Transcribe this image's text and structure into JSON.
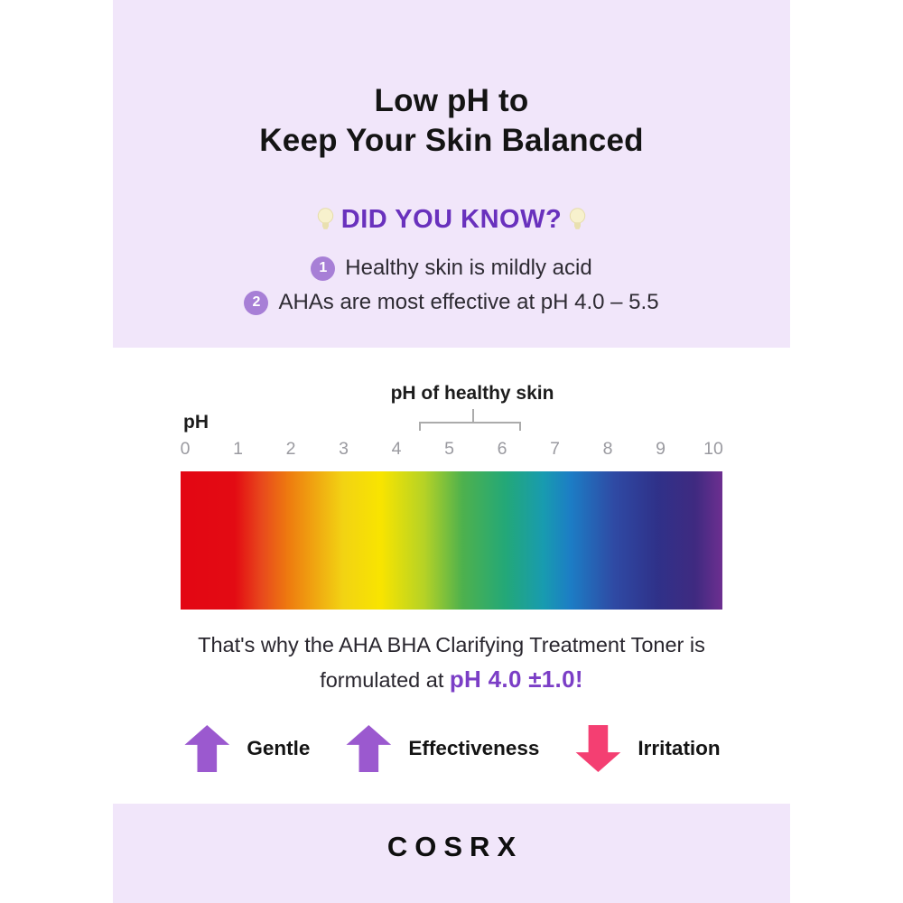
{
  "top_panel": {
    "title_line1": "Low pH to",
    "title_line2": "Keep Your Skin Balanced",
    "did_you_know": "DID YOU KNOW?",
    "facts": [
      {
        "num": "1",
        "text": "Healthy skin is mildly acid"
      },
      {
        "num": "2",
        "text": "AHAs are most effective at pH 4.0 – 5.5"
      }
    ]
  },
  "scale": {
    "annotation": "pH of healthy skin",
    "axis_label": "pH",
    "ticks": [
      "0",
      "1",
      "2",
      "3",
      "4",
      "5",
      "6",
      "7",
      "8",
      "9",
      "10"
    ]
  },
  "chart_data": {
    "type": "heatmap",
    "title": "pH color scale",
    "xlabel": "pH",
    "x_ticks": [
      0,
      1,
      2,
      3,
      4,
      5,
      6,
      7,
      8,
      9,
      10
    ],
    "axis_range": [
      0,
      10
    ],
    "annotation": "pH of healthy skin",
    "annotation_range_ph": [
      4.5,
      6.5
    ],
    "gradient_stops": [
      {
        "ph": 0,
        "color": "#e30613"
      },
      {
        "ph": 1,
        "color": "#e30b13"
      },
      {
        "ph": 1.5,
        "color": "#e8491c"
      },
      {
        "ph": 2,
        "color": "#ee7c0f"
      },
      {
        "ph": 3,
        "color": "#f2d313"
      },
      {
        "ph": 3.7,
        "color": "#f8e400"
      },
      {
        "ph": 4.5,
        "color": "#b5d226"
      },
      {
        "ph": 5.2,
        "color": "#4eb14d"
      },
      {
        "ph": 6,
        "color": "#23a878"
      },
      {
        "ph": 6.7,
        "color": "#189bb0"
      },
      {
        "ph": 7.2,
        "color": "#1c7dc5"
      },
      {
        "ph": 8,
        "color": "#2f4aa4"
      },
      {
        "ph": 8.8,
        "color": "#2f3189"
      },
      {
        "ph": 9.5,
        "color": "#3f2a80"
      },
      {
        "ph": 10,
        "color": "#6d2f90"
      }
    ]
  },
  "conclusion": {
    "line1": "That's why the AHA BHA Clarifying Treatment Toner is",
    "line2_prefix": "formulated at ",
    "line2_highlight": "pH 4.0 ±1.0!"
  },
  "legend": {
    "items": [
      {
        "icon": "arrow-up-icon",
        "direction": "up",
        "label": "Gentle",
        "color": "#9b59cf"
      },
      {
        "icon": "arrow-up-icon",
        "direction": "up",
        "label": "Effectiveness",
        "color": "#9b59cf"
      },
      {
        "icon": "arrow-down-icon",
        "direction": "down",
        "label": "Irritation",
        "color": "#f43f72"
      }
    ]
  },
  "footer": {
    "brand": "COSRX"
  },
  "colors": {
    "panel_bg": "#f1e6fa",
    "heading_purple": "#6931bd",
    "badge_purple": "#a77fd6",
    "highlight_purple": "#7b3ec6",
    "arrow_purple": "#9b59cf",
    "arrow_pink": "#f43f72",
    "text_dark": "#141414",
    "tick_gray": "#9a9aa0"
  }
}
